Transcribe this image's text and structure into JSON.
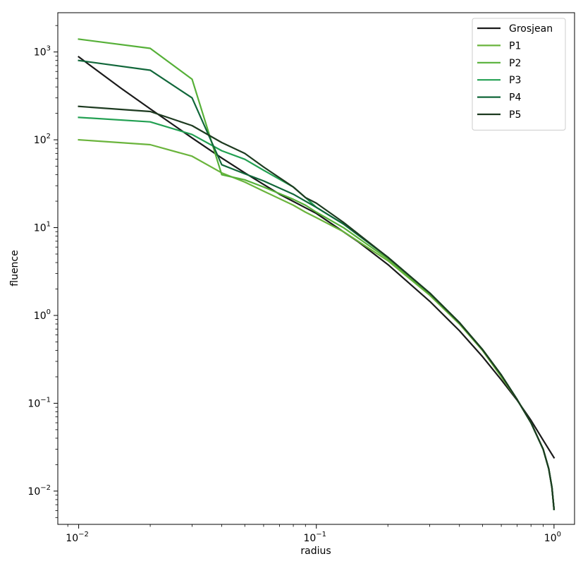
{
  "chart_data": {
    "type": "line",
    "title": "",
    "xlabel": "radius",
    "ylabel": "fluence",
    "xscale": "log",
    "yscale": "log",
    "xlim": [
      0.00817,
      1.22
    ],
    "ylim": [
      0.00418,
      2800
    ],
    "grid": false,
    "legend_position": "top-right",
    "x_ticks": [
      {
        "base": "10",
        "exp": "−2",
        "value": 0.01
      },
      {
        "base": "10",
        "exp": "−1",
        "value": 0.1
      },
      {
        "base": "10",
        "exp": "0",
        "value": 1
      }
    ],
    "y_ticks": [
      {
        "base": "10",
        "exp": "−2",
        "value": 0.01
      },
      {
        "base": "10",
        "exp": "−1",
        "value": 0.1
      },
      {
        "base": "10",
        "exp": "0",
        "value": 1
      },
      {
        "base": "10",
        "exp": "1",
        "value": 10
      },
      {
        "base": "10",
        "exp": "2",
        "value": 100
      },
      {
        "base": "10",
        "exp": "3",
        "value": 1000
      }
    ],
    "series": [
      {
        "name": "Grosjean",
        "color": "#1a1a1a",
        "x": [
          0.01,
          0.015,
          0.02,
          0.03,
          0.04,
          0.05,
          0.07,
          0.1,
          0.15,
          0.2,
          0.3,
          0.4,
          0.5,
          0.6,
          0.7,
          0.8,
          0.9,
          1.0
        ],
        "y": [
          880,
          390,
          225,
          105,
          62,
          42,
          24,
          14.5,
          6.9,
          3.8,
          1.45,
          0.67,
          0.34,
          0.185,
          0.108,
          0.064,
          0.038,
          0.024
        ]
      },
      {
        "name": "P1",
        "color": "#6ab43c",
        "x": [
          0.01,
          0.02,
          0.03,
          0.04,
          0.05,
          0.06,
          0.08,
          0.09,
          0.1,
          0.13,
          0.2,
          0.3,
          0.4,
          0.5,
          0.6,
          0.7,
          0.8,
          0.9,
          0.95,
          0.98,
          1.0
        ],
        "y": [
          100,
          88,
          65,
          42,
          33,
          26,
          18,
          15,
          13,
          9,
          4.2,
          1.7,
          0.8,
          0.4,
          0.2,
          0.11,
          0.06,
          0.03,
          0.018,
          0.011,
          0.0062
        ]
      },
      {
        "name": "P2",
        "color": "#56b038",
        "x": [
          0.01,
          0.02,
          0.03,
          0.04,
          0.05,
          0.06,
          0.08,
          0.09,
          0.1,
          0.13,
          0.2,
          0.3,
          0.4,
          0.5,
          0.6,
          0.7,
          0.8,
          0.9,
          0.95,
          0.98,
          1.0
        ],
        "y": [
          1400,
          1100,
          490,
          40,
          35,
          29,
          21,
          18,
          15,
          10,
          4.4,
          1.75,
          0.82,
          0.41,
          0.21,
          0.11,
          0.06,
          0.03,
          0.018,
          0.011,
          0.0062
        ]
      },
      {
        "name": "P3",
        "color": "#22a052",
        "x": [
          0.01,
          0.02,
          0.03,
          0.04,
          0.05,
          0.06,
          0.08,
          0.09,
          0.1,
          0.13,
          0.2,
          0.3,
          0.4,
          0.5,
          0.6,
          0.7,
          0.8,
          0.9,
          0.95,
          0.98,
          1.0
        ],
        "y": [
          180,
          160,
          115,
          75,
          60,
          45,
          29,
          22,
          17,
          11,
          4.6,
          1.8,
          0.83,
          0.41,
          0.21,
          0.11,
          0.06,
          0.03,
          0.018,
          0.011,
          0.0062
        ]
      },
      {
        "name": "P4",
        "color": "#11673a",
        "x": [
          0.01,
          0.02,
          0.03,
          0.04,
          0.05,
          0.06,
          0.08,
          0.09,
          0.1,
          0.13,
          0.2,
          0.3,
          0.4,
          0.5,
          0.6,
          0.7,
          0.8,
          0.9,
          0.95,
          0.98,
          1.0
        ],
        "y": [
          800,
          620,
          300,
          52,
          41,
          34,
          24,
          20,
          17,
          11,
          4.6,
          1.8,
          0.83,
          0.41,
          0.21,
          0.11,
          0.06,
          0.03,
          0.018,
          0.011,
          0.0062
        ]
      },
      {
        "name": "P5",
        "color": "#1d3a20",
        "x": [
          0.01,
          0.02,
          0.03,
          0.04,
          0.05,
          0.06,
          0.08,
          0.09,
          0.1,
          0.13,
          0.2,
          0.3,
          0.4,
          0.5,
          0.6,
          0.7,
          0.8,
          0.9,
          0.95,
          0.98,
          1.0
        ],
        "y": [
          240,
          210,
          145,
          93,
          70,
          49,
          29,
          22,
          19,
          11.5,
          4.6,
          1.8,
          0.83,
          0.41,
          0.21,
          0.11,
          0.06,
          0.03,
          0.018,
          0.011,
          0.0062
        ]
      }
    ]
  }
}
